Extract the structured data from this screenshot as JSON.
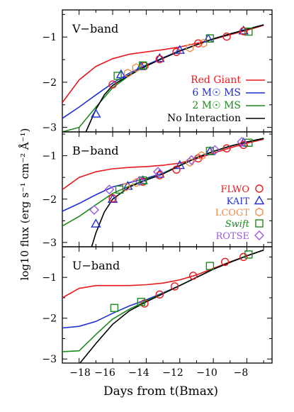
{
  "figure": {
    "xlabel": "Days from t(Bmax)",
    "ylabel": "log10 flux (erg s⁻¹ cm⁻² Å⁻¹)",
    "x_ticks": [
      "−18",
      "−16",
      "−14",
      "−12",
      "−10",
      "−8"
    ],
    "y_ticks": [
      "−3",
      "−2",
      "−1"
    ]
  },
  "model_legend": [
    {
      "label": "Red Giant",
      "color": "#e8191e"
    },
    {
      "label": "6 M☉ MS",
      "color": "#1f2fd1"
    },
    {
      "label": "2 M☉ MS",
      "color": "#1c8a1c"
    },
    {
      "label": "No Interaction",
      "color": "#000000"
    }
  ],
  "source_legend": [
    {
      "label": "FLWO",
      "color": "#e8191e",
      "marker": "circle",
      "italic": false
    },
    {
      "label": "KAIT",
      "color": "#1f2fd1",
      "marker": "triangle",
      "italic": false
    },
    {
      "label": "LCOGT",
      "color": "#f08c4a",
      "marker": "hexagon",
      "italic": false
    },
    {
      "label": "Swift",
      "color": "#1c8a1c",
      "marker": "square",
      "italic": true
    },
    {
      "label": "ROTSE",
      "color": "#9b59d8",
      "marker": "diamond",
      "italic": false
    }
  ],
  "chart_data": [
    {
      "type": "line",
      "panel": "V-band",
      "xlabel": "Days from t(Bmax)",
      "ylabel": "log10 flux (erg s⁻¹ cm⁻² Å⁻¹)",
      "xlim": [
        -19,
        -6.5
      ],
      "ylim": [
        -3.1,
        -0.4
      ],
      "models": [
        {
          "name": "Red Giant",
          "color": "#e8191e",
          "points": [
            [
              -19,
              -2.45
            ],
            [
              -18,
              -1.95
            ],
            [
              -17,
              -1.65
            ],
            [
              -16,
              -1.48
            ],
            [
              -15,
              -1.38
            ],
            [
              -14,
              -1.33
            ],
            [
              -13,
              -1.28
            ],
            [
              -12,
              -1.22
            ],
            [
              -11,
              -1.14
            ],
            [
              -10,
              -1.05
            ],
            [
              -9,
              -0.95
            ],
            [
              -8,
              -0.85
            ],
            [
              -7,
              -0.74
            ]
          ]
        },
        {
          "name": "6 M☉ MS",
          "color": "#1f2fd1",
          "points": [
            [
              -19,
              -2.8
            ],
            [
              -18,
              -2.55
            ],
            [
              -17,
              -2.28
            ],
            [
              -16,
              -2.02
            ],
            [
              -15,
              -1.8
            ],
            [
              -14,
              -1.62
            ],
            [
              -13,
              -1.46
            ],
            [
              -12,
              -1.3
            ],
            [
              -11,
              -1.17
            ],
            [
              -10,
              -1.04
            ],
            [
              -9,
              -0.93
            ],
            [
              -8,
              -0.83
            ],
            [
              -7,
              -0.73
            ]
          ]
        },
        {
          "name": "2 M☉ MS",
          "color": "#1c8a1c",
          "points": [
            [
              -19,
              -3.1
            ],
            [
              -18,
              -3.0
            ],
            [
              -17,
              -2.55
            ],
            [
              -16,
              -2.12
            ],
            [
              -15,
              -1.85
            ],
            [
              -14,
              -1.64
            ],
            [
              -13,
              -1.47
            ],
            [
              -12,
              -1.31
            ],
            [
              -11,
              -1.17
            ],
            [
              -10,
              -1.04
            ],
            [
              -9,
              -0.93
            ],
            [
              -8,
              -0.83
            ],
            [
              -7,
              -0.73
            ]
          ]
        },
        {
          "name": "No Interaction",
          "color": "#000000",
          "points": [
            [
              -17.6,
              -3.1
            ],
            [
              -17,
              -2.6
            ],
            [
              -16.5,
              -2.28
            ],
            [
              -16,
              -2.07
            ],
            [
              -15,
              -1.84
            ],
            [
              -14,
              -1.64
            ],
            [
              -13,
              -1.47
            ],
            [
              -12,
              -1.31
            ],
            [
              -11,
              -1.17
            ],
            [
              -10,
              -1.04
            ],
            [
              -9,
              -0.93
            ],
            [
              -8,
              -0.83
            ],
            [
              -7,
              -0.73
            ]
          ]
        }
      ],
      "observations": [
        {
          "source": "KAIT",
          "points": [
            [
              -17,
              -2.7
            ],
            [
              -15.5,
              -1.83
            ],
            [
              -14.3,
              -1.65
            ],
            [
              -13.2,
              -1.47
            ],
            [
              -12,
              -1.29
            ],
            [
              -10.3,
              -1.04
            ],
            [
              -8.2,
              -0.86
            ]
          ]
        },
        {
          "source": "FLWO",
          "points": [
            [
              -16,
              -2.05
            ],
            [
              -14.1,
              -1.64
            ],
            [
              -13.2,
              -1.49
            ],
            [
              -12.2,
              -1.33
            ],
            [
              -10.9,
              -1.14
            ],
            [
              -9.2,
              -0.99
            ],
            [
              -8.2,
              -0.87
            ]
          ]
        },
        {
          "source": "LCOGT",
          "points": [
            [
              -15.1,
              -1.8
            ],
            [
              -14.6,
              -1.68
            ],
            [
              -11.4,
              -1.24
            ],
            [
              -10.6,
              -1.14
            ]
          ]
        },
        {
          "source": "Swift",
          "points": [
            [
              -15.7,
              -1.86
            ],
            [
              -14.2,
              -1.63
            ],
            [
              -10.2,
              -1.03
            ],
            [
              -7.9,
              -0.88
            ]
          ]
        }
      ]
    },
    {
      "type": "line",
      "panel": "B-band",
      "xlabel": "Days from t(Bmax)",
      "ylabel": "log10 flux (erg s⁻¹ cm⁻² Å⁻¹)",
      "xlim": [
        -19,
        -6.5
      ],
      "ylim": [
        -3.1,
        -0.45
      ],
      "models": [
        {
          "name": "Red Giant",
          "color": "#e8191e",
          "points": [
            [
              -19,
              -1.78
            ],
            [
              -18,
              -1.5
            ],
            [
              -17,
              -1.37
            ],
            [
              -16,
              -1.3
            ],
            [
              -15,
              -1.27
            ],
            [
              -14,
              -1.25
            ],
            [
              -13,
              -1.22
            ],
            [
              -12,
              -1.17
            ],
            [
              -11,
              -1.07
            ],
            [
              -10,
              -0.94
            ],
            [
              -9,
              -0.82
            ],
            [
              -8,
              -0.71
            ],
            [
              -7,
              -0.62
            ]
          ]
        },
        {
          "name": "6 M☉ MS",
          "color": "#1f2fd1",
          "points": [
            [
              -19,
              -2.28
            ],
            [
              -18,
              -2.1
            ],
            [
              -17,
              -1.9
            ],
            [
              -16,
              -1.72
            ],
            [
              -15,
              -1.62
            ],
            [
              -14,
              -1.52
            ],
            [
              -13,
              -1.4
            ],
            [
              -12,
              -1.22
            ],
            [
              -11,
              -1.04
            ],
            [
              -10,
              -0.9
            ],
            [
              -9,
              -0.78
            ],
            [
              -8,
              -0.68
            ],
            [
              -7,
              -0.6
            ]
          ]
        },
        {
          "name": "2 M☉ MS",
          "color": "#1c8a1c",
          "points": [
            [
              -19,
              -2.62
            ],
            [
              -18,
              -2.4
            ],
            [
              -17,
              -2.13
            ],
            [
              -16,
              -1.87
            ],
            [
              -15,
              -1.7
            ],
            [
              -14,
              -1.55
            ],
            [
              -13,
              -1.41
            ],
            [
              -12,
              -1.22
            ],
            [
              -11,
              -1.04
            ],
            [
              -10,
              -0.9
            ],
            [
              -9,
              -0.78
            ],
            [
              -8,
              -0.68
            ],
            [
              -7,
              -0.6
            ]
          ]
        },
        {
          "name": "No Interaction",
          "color": "#000000",
          "points": [
            [
              -17.25,
              -3.1
            ],
            [
              -17,
              -2.78
            ],
            [
              -16.5,
              -2.3
            ],
            [
              -16,
              -2.0
            ],
            [
              -15,
              -1.72
            ],
            [
              -14,
              -1.56
            ],
            [
              -13,
              -1.42
            ],
            [
              -12,
              -1.23
            ],
            [
              -11,
              -1.05
            ],
            [
              -10,
              -0.9
            ],
            [
              -9,
              -0.78
            ],
            [
              -8,
              -0.68
            ],
            [
              -7,
              -0.6
            ]
          ]
        }
      ],
      "observations": [
        {
          "source": "KAIT",
          "points": [
            [
              -17,
              -2.57
            ],
            [
              -16,
              -2.0
            ],
            [
              -15.1,
              -1.7
            ],
            [
              -14.2,
              -1.57
            ],
            [
              -13.2,
              -1.42
            ],
            [
              -12,
              -1.22
            ],
            [
              -10.2,
              -0.9
            ],
            [
              -8.2,
              -0.7
            ]
          ]
        },
        {
          "source": "FLWO",
          "points": [
            [
              -16,
              -1.98
            ],
            [
              -14.2,
              -1.6
            ],
            [
              -13.2,
              -1.45
            ],
            [
              -12.2,
              -1.32
            ],
            [
              -10.9,
              -1.06
            ],
            [
              -9.2,
              -0.83
            ],
            [
              -8.2,
              -0.75
            ]
          ]
        },
        {
          "source": "LCOGT",
          "points": [
            [
              -15.2,
              -1.72
            ],
            [
              -14.6,
              -1.62
            ],
            [
              -11.4,
              -1.15
            ],
            [
              -10.7,
              -1.0
            ]
          ]
        },
        {
          "source": "Swift",
          "points": [
            [
              -15.6,
              -1.78
            ],
            [
              -14.2,
              -1.57
            ],
            [
              -10.2,
              -0.89
            ],
            [
              -7.9,
              -0.7
            ]
          ]
        },
        {
          "source": "ROTSE",
          "points": [
            [
              -17.1,
              -2.25
            ],
            [
              -16.2,
              -1.78
            ],
            [
              -14.4,
              -1.58
            ],
            [
              -13.3,
              -1.37
            ],
            [
              -11.3,
              -1.1
            ],
            [
              -9.9,
              -0.87
            ],
            [
              -8.3,
              -0.68
            ]
          ]
        }
      ]
    },
    {
      "type": "line",
      "panel": "U-band",
      "xlabel": "Days from t(Bmax)",
      "ylabel": "log10 flux (erg s⁻¹ cm⁻² Å⁻¹)",
      "xlim": [
        -19,
        -6.5
      ],
      "ylim": [
        -3.1,
        -0.25
      ],
      "models": [
        {
          "name": "Red Giant",
          "color": "#e8191e",
          "points": [
            [
              -19,
              -1.5
            ],
            [
              -18,
              -1.27
            ],
            [
              -17,
              -1.2
            ],
            [
              -16,
              -1.2
            ],
            [
              -15,
              -1.2
            ],
            [
              -14,
              -1.18
            ],
            [
              -13,
              -1.14
            ],
            [
              -12,
              -1.06
            ],
            [
              -11,
              -0.94
            ],
            [
              -10,
              -0.78
            ],
            [
              -9,
              -0.62
            ],
            [
              -8,
              -0.47
            ],
            [
              -7,
              -0.33
            ]
          ]
        },
        {
          "name": "6 M☉ MS",
          "color": "#1f2fd1",
          "points": [
            [
              -19,
              -2.24
            ],
            [
              -18,
              -2.2
            ],
            [
              -17,
              -2.08
            ],
            [
              -16,
              -1.88
            ],
            [
              -15,
              -1.7
            ],
            [
              -14,
              -1.55
            ],
            [
              -13,
              -1.38
            ],
            [
              -12,
              -1.2
            ],
            [
              -11,
              -1.0
            ],
            [
              -10,
              -0.8
            ],
            [
              -9,
              -0.63
            ],
            [
              -8,
              -0.47
            ],
            [
              -7,
              -0.33
            ]
          ]
        },
        {
          "name": "2 M☉ MS",
          "color": "#1c8a1c",
          "points": [
            [
              -19,
              -2.82
            ],
            [
              -18,
              -2.8
            ],
            [
              -17,
              -2.4
            ],
            [
              -16,
              -2.02
            ],
            [
              -15,
              -1.78
            ],
            [
              -14,
              -1.58
            ],
            [
              -13,
              -1.39
            ],
            [
              -12,
              -1.2
            ],
            [
              -11,
              -1.0
            ],
            [
              -10,
              -0.8
            ],
            [
              -9,
              -0.63
            ],
            [
              -8,
              -0.47
            ],
            [
              -7,
              -0.33
            ]
          ]
        },
        {
          "name": "No Interaction",
          "color": "#000000",
          "points": [
            [
              -17.95,
              -3.1
            ],
            [
              -17,
              -2.62
            ],
            [
              -16,
              -2.15
            ],
            [
              -15,
              -1.82
            ],
            [
              -14,
              -1.6
            ],
            [
              -13,
              -1.4
            ],
            [
              -12,
              -1.2
            ],
            [
              -11,
              -1.0
            ],
            [
              -10,
              -0.8
            ],
            [
              -9,
              -0.63
            ],
            [
              -8,
              -0.47
            ],
            [
              -7,
              -0.33
            ]
          ]
        }
      ],
      "observations": [
        {
          "source": "FLWO",
          "points": [
            [
              -14.1,
              -1.64
            ],
            [
              -13.2,
              -1.42
            ],
            [
              -12.3,
              -1.22
            ],
            [
              -11.2,
              -0.96
            ],
            [
              -9.3,
              -0.62
            ],
            [
              -8.2,
              -0.5
            ]
          ]
        },
        {
          "source": "Swift",
          "points": [
            [
              -15.9,
              -1.75
            ],
            [
              -14.3,
              -1.6
            ],
            [
              -10.2,
              -0.72
            ],
            [
              -7.9,
              -0.44
            ]
          ]
        }
      ]
    }
  ],
  "panels": [
    {
      "id": "v",
      "band_label": "V−band"
    },
    {
      "id": "b",
      "band_label": "B−band"
    },
    {
      "id": "u",
      "band_label": "U−band"
    }
  ]
}
